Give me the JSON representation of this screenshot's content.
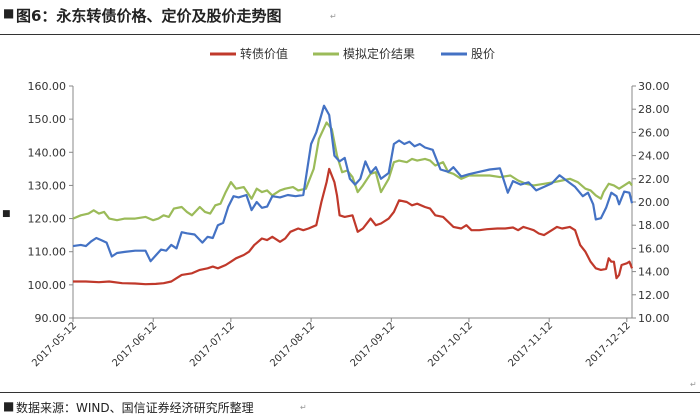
{
  "figure": {
    "title": "图6：永东转债价格、定价及股价走势图",
    "source": "数据来源：WIND、国信证券经济研究所整理"
  },
  "chart_data": {
    "type": "line",
    "legend": {
      "placement": "top-center",
      "entries": [
        "转债价值",
        "模拟定价结果",
        "股价"
      ]
    },
    "grid": false,
    "x_ticks": [
      "2017-05-12",
      "2017-06-12",
      "2017-07-12",
      "2017-08-12",
      "2017-09-12",
      "2017-10-12",
      "2017-11-12",
      "2017-12-12"
    ],
    "x_range": [
      "2017-05-12",
      "2017-12-14"
    ],
    "y_left": {
      "range": [
        90,
        160
      ],
      "ticks": [
        "90.00",
        "100.00",
        "110.00",
        "120.00",
        "130.00",
        "140.00",
        "150.00",
        "160.00"
      ]
    },
    "y_right": {
      "range": [
        10,
        30
      ],
      "ticks": [
        "10.00",
        "12.00",
        "14.00",
        "16.00",
        "18.00",
        "20.00",
        "22.00",
        "24.00",
        "26.00",
        "28.00",
        "30.00"
      ]
    },
    "series": [
      {
        "name": "转债价值",
        "axis": "left",
        "color": "#c0392b",
        "points": [
          [
            "2017-05-12",
            101
          ],
          [
            "2017-05-17",
            101
          ],
          [
            "2017-05-22",
            100.8
          ],
          [
            "2017-05-26",
            101
          ],
          [
            "2017-05-31",
            100.5
          ],
          [
            "2017-06-05",
            100.4
          ],
          [
            "2017-06-09",
            100.2
          ],
          [
            "2017-06-13",
            100.3
          ],
          [
            "2017-06-16",
            100.5
          ],
          [
            "2017-06-19",
            101
          ],
          [
            "2017-06-21",
            102
          ],
          [
            "2017-06-23",
            103
          ],
          [
            "2017-06-27",
            103.5
          ],
          [
            "2017-06-30",
            104.5
          ],
          [
            "2017-07-03",
            105
          ],
          [
            "2017-07-05",
            105.5
          ],
          [
            "2017-07-07",
            105
          ],
          [
            "2017-07-10",
            106
          ],
          [
            "2017-07-12",
            107
          ],
          [
            "2017-07-14",
            108
          ],
          [
            "2017-07-17",
            109
          ],
          [
            "2017-07-19",
            110
          ],
          [
            "2017-07-21",
            112
          ],
          [
            "2017-07-24",
            114
          ],
          [
            "2017-07-26",
            113.5
          ],
          [
            "2017-07-28",
            114.5
          ],
          [
            "2017-07-31",
            113
          ],
          [
            "2017-08-02",
            114
          ],
          [
            "2017-08-04",
            116
          ],
          [
            "2017-08-07",
            117
          ],
          [
            "2017-08-09",
            116.5
          ],
          [
            "2017-08-11",
            117
          ],
          [
            "2017-08-14",
            118
          ],
          [
            "2017-08-16",
            125
          ],
          [
            "2017-08-18",
            131
          ],
          [
            "2017-08-19",
            135
          ],
          [
            "2017-08-21",
            131
          ],
          [
            "2017-08-22",
            127
          ],
          [
            "2017-08-23",
            121
          ],
          [
            "2017-08-25",
            120.5
          ],
          [
            "2017-08-28",
            121
          ],
          [
            "2017-08-30",
            116
          ],
          [
            "2017-09-01",
            117
          ],
          [
            "2017-09-04",
            120
          ],
          [
            "2017-09-06",
            118
          ],
          [
            "2017-09-08",
            118.5
          ],
          [
            "2017-09-11",
            120
          ],
          [
            "2017-09-13",
            122
          ],
          [
            "2017-09-15",
            125.5
          ],
          [
            "2017-09-18",
            125
          ],
          [
            "2017-09-20",
            124
          ],
          [
            "2017-09-22",
            124.5
          ],
          [
            "2017-09-25",
            123.5
          ],
          [
            "2017-09-27",
            123
          ],
          [
            "2017-09-29",
            121
          ],
          [
            "2017-10-02",
            120.5
          ],
          [
            "2017-10-04",
            119
          ],
          [
            "2017-10-06",
            117.5
          ],
          [
            "2017-10-09",
            117
          ],
          [
            "2017-10-11",
            118
          ],
          [
            "2017-10-13",
            116.5
          ],
          [
            "2017-10-16",
            116.5
          ],
          [
            "2017-10-19",
            116.8
          ],
          [
            "2017-10-23",
            117
          ],
          [
            "2017-10-26",
            117
          ],
          [
            "2017-10-29",
            117.3
          ],
          [
            "2017-10-31",
            116.5
          ],
          [
            "2017-11-02",
            117.5
          ],
          [
            "2017-11-04",
            117
          ],
          [
            "2017-11-06",
            116.5
          ],
          [
            "2017-11-08",
            115.5
          ],
          [
            "2017-11-10",
            115
          ],
          [
            "2017-11-13",
            116.5
          ],
          [
            "2017-11-15",
            117.5
          ],
          [
            "2017-11-17",
            117
          ],
          [
            "2017-11-20",
            117.5
          ],
          [
            "2017-11-22",
            116.5
          ],
          [
            "2017-11-24",
            112
          ],
          [
            "2017-11-26",
            110
          ],
          [
            "2017-11-28",
            107
          ],
          [
            "2017-11-30",
            105
          ],
          [
            "2017-12-02",
            104.5
          ],
          [
            "2017-12-04",
            104.8
          ],
          [
            "2017-12-05",
            108
          ],
          [
            "2017-12-06",
            107
          ],
          [
            "2017-12-07",
            107
          ],
          [
            "2017-12-08",
            102
          ],
          [
            "2017-12-09",
            103
          ],
          [
            "2017-12-10",
            106
          ],
          [
            "2017-12-12",
            106.5
          ],
          [
            "2017-12-13",
            107
          ],
          [
            "2017-12-14",
            105
          ]
        ]
      },
      {
        "name": "模拟定价结果",
        "axis": "left",
        "color": "#9bbb59",
        "points": [
          [
            "2017-05-12",
            120
          ],
          [
            "2017-05-15",
            121
          ],
          [
            "2017-05-18",
            121.5
          ],
          [
            "2017-05-20",
            122.5
          ],
          [
            "2017-05-22",
            121.5
          ],
          [
            "2017-05-24",
            122
          ],
          [
            "2017-05-26",
            120
          ],
          [
            "2017-05-29",
            119.5
          ],
          [
            "2017-06-01",
            120
          ],
          [
            "2017-06-05",
            120
          ],
          [
            "2017-06-09",
            120.5
          ],
          [
            "2017-06-12",
            119.5
          ],
          [
            "2017-06-14",
            120
          ],
          [
            "2017-06-16",
            121
          ],
          [
            "2017-06-18",
            120.5
          ],
          [
            "2017-06-20",
            123
          ],
          [
            "2017-06-23",
            123.5
          ],
          [
            "2017-06-25",
            122
          ],
          [
            "2017-06-27",
            121
          ],
          [
            "2017-06-30",
            123.5
          ],
          [
            "2017-07-02",
            122
          ],
          [
            "2017-07-04",
            121.5
          ],
          [
            "2017-07-06",
            124
          ],
          [
            "2017-07-08",
            124.5
          ],
          [
            "2017-07-10",
            128
          ],
          [
            "2017-07-12",
            131
          ],
          [
            "2017-07-14",
            129
          ],
          [
            "2017-07-17",
            129.5
          ],
          [
            "2017-07-20",
            126
          ],
          [
            "2017-07-22",
            129
          ],
          [
            "2017-07-24",
            128
          ],
          [
            "2017-07-26",
            128.5
          ],
          [
            "2017-07-28",
            127
          ],
          [
            "2017-07-31",
            128.5
          ],
          [
            "2017-08-02",
            129
          ],
          [
            "2017-08-05",
            129.5
          ],
          [
            "2017-08-07",
            128.5
          ],
          [
            "2017-08-10",
            129
          ],
          [
            "2017-08-13",
            135
          ],
          [
            "2017-08-15",
            144
          ],
          [
            "2017-08-18",
            149
          ],
          [
            "2017-08-20",
            147
          ],
          [
            "2017-08-22",
            139
          ],
          [
            "2017-08-24",
            134
          ],
          [
            "2017-08-26",
            134.5
          ],
          [
            "2017-08-28",
            132.5
          ],
          [
            "2017-08-30",
            128
          ],
          [
            "2017-09-01",
            130
          ],
          [
            "2017-09-04",
            133.5
          ],
          [
            "2017-09-06",
            134
          ],
          [
            "2017-09-08",
            128
          ],
          [
            "2017-09-11",
            132
          ],
          [
            "2017-09-13",
            137
          ],
          [
            "2017-09-15",
            137.5
          ],
          [
            "2017-09-18",
            137
          ],
          [
            "2017-09-20",
            138
          ],
          [
            "2017-09-22",
            137.5
          ],
          [
            "2017-09-25",
            138
          ],
          [
            "2017-09-27",
            137.5
          ],
          [
            "2017-09-29",
            136
          ],
          [
            "2017-10-02",
            137
          ],
          [
            "2017-10-04",
            134
          ],
          [
            "2017-10-06",
            133.5
          ],
          [
            "2017-10-09",
            132
          ],
          [
            "2017-10-12",
            133
          ],
          [
            "2017-10-16",
            133
          ],
          [
            "2017-10-20",
            133
          ],
          [
            "2017-10-24",
            132.5
          ],
          [
            "2017-10-28",
            133
          ],
          [
            "2017-10-31",
            131.5
          ],
          [
            "2017-11-03",
            130.5
          ],
          [
            "2017-11-06",
            130
          ],
          [
            "2017-11-10",
            130.5
          ],
          [
            "2017-11-14",
            131
          ],
          [
            "2017-11-17",
            131.5
          ],
          [
            "2017-11-20",
            132
          ],
          [
            "2017-11-23",
            131
          ],
          [
            "2017-11-26",
            129
          ],
          [
            "2017-11-28",
            128.5
          ],
          [
            "2017-11-30",
            127
          ],
          [
            "2017-12-02",
            126
          ],
          [
            "2017-12-03",
            128
          ],
          [
            "2017-12-05",
            130.5
          ],
          [
            "2017-12-07",
            130
          ],
          [
            "2017-12-09",
            129
          ],
          [
            "2017-12-11",
            130
          ],
          [
            "2017-12-13",
            131
          ],
          [
            "2017-12-14",
            130
          ]
        ]
      },
      {
        "name": "股价",
        "axis": "right",
        "color": "#4472c4",
        "points": [
          [
            "2017-05-12",
            16.2
          ],
          [
            "2017-05-15",
            16.3
          ],
          [
            "2017-05-17",
            16.2
          ],
          [
            "2017-05-19",
            16.6
          ],
          [
            "2017-05-21",
            16.9
          ],
          [
            "2017-05-23",
            16.7
          ],
          [
            "2017-05-25",
            16.5
          ],
          [
            "2017-05-27",
            15.3
          ],
          [
            "2017-05-29",
            15.6
          ],
          [
            "2017-06-01",
            15.7
          ],
          [
            "2017-06-05",
            15.8
          ],
          [
            "2017-06-09",
            15.8
          ],
          [
            "2017-06-11",
            14.9
          ],
          [
            "2017-06-13",
            15.4
          ],
          [
            "2017-06-15",
            15.9
          ],
          [
            "2017-06-17",
            15.8
          ],
          [
            "2017-06-19",
            16.3
          ],
          [
            "2017-06-21",
            16
          ],
          [
            "2017-06-23",
            17.4
          ],
          [
            "2017-06-25",
            17.3
          ],
          [
            "2017-06-28",
            17.2
          ],
          [
            "2017-07-01",
            16.5
          ],
          [
            "2017-07-03",
            17
          ],
          [
            "2017-07-05",
            16.9
          ],
          [
            "2017-07-07",
            18
          ],
          [
            "2017-07-09",
            18.2
          ],
          [
            "2017-07-11",
            19.6
          ],
          [
            "2017-07-13",
            20.5
          ],
          [
            "2017-07-15",
            20.4
          ],
          [
            "2017-07-18",
            20.6
          ],
          [
            "2017-07-20",
            19.3
          ],
          [
            "2017-07-22",
            20
          ],
          [
            "2017-07-24",
            19.5
          ],
          [
            "2017-07-26",
            19.6
          ],
          [
            "2017-07-28",
            20.5
          ],
          [
            "2017-07-31",
            20.4
          ],
          [
            "2017-08-03",
            20.6
          ],
          [
            "2017-08-06",
            20.5
          ],
          [
            "2017-08-09",
            20.6
          ],
          [
            "2017-08-12",
            25
          ],
          [
            "2017-08-14",
            26
          ],
          [
            "2017-08-17",
            28.3
          ],
          [
            "2017-08-19",
            27.5
          ],
          [
            "2017-08-21",
            24
          ],
          [
            "2017-08-23",
            23.5
          ],
          [
            "2017-08-25",
            23.8
          ],
          [
            "2017-08-27",
            22
          ],
          [
            "2017-08-29",
            21.5
          ],
          [
            "2017-08-31",
            22
          ],
          [
            "2017-09-02",
            23.5
          ],
          [
            "2017-09-04",
            22.5
          ],
          [
            "2017-09-06",
            23
          ],
          [
            "2017-09-08",
            22
          ],
          [
            "2017-09-11",
            22.5
          ],
          [
            "2017-09-13",
            25
          ],
          [
            "2017-09-15",
            25.3
          ],
          [
            "2017-09-17",
            25
          ],
          [
            "2017-09-19",
            25.2
          ],
          [
            "2017-09-21",
            24.8
          ],
          [
            "2017-09-23",
            25
          ],
          [
            "2017-09-25",
            24.7
          ],
          [
            "2017-09-28",
            24.5
          ],
          [
            "2017-10-01",
            22.8
          ],
          [
            "2017-10-04",
            22.6
          ],
          [
            "2017-10-06",
            23
          ],
          [
            "2017-10-09",
            22.2
          ],
          [
            "2017-10-12",
            22.4
          ],
          [
            "2017-10-16",
            22.6
          ],
          [
            "2017-10-20",
            22.8
          ],
          [
            "2017-10-24",
            22.9
          ],
          [
            "2017-10-27",
            20.8
          ],
          [
            "2017-10-29",
            21.8
          ],
          [
            "2017-11-01",
            21.5
          ],
          [
            "2017-11-04",
            21.7
          ],
          [
            "2017-11-07",
            21
          ],
          [
            "2017-11-10",
            21.3
          ],
          [
            "2017-11-13",
            21.6
          ],
          [
            "2017-11-16",
            22.3
          ],
          [
            "2017-11-19",
            21.8
          ],
          [
            "2017-11-22",
            21.3
          ],
          [
            "2017-11-25",
            20.5
          ],
          [
            "2017-11-27",
            20.8
          ],
          [
            "2017-11-29",
            19.8
          ],
          [
            "2017-11-30",
            18.5
          ],
          [
            "2017-12-02",
            18.6
          ],
          [
            "2017-12-04",
            19.5
          ],
          [
            "2017-12-06",
            20.8
          ],
          [
            "2017-12-08",
            20.5
          ],
          [
            "2017-12-09",
            19.8
          ],
          [
            "2017-12-11",
            20.9
          ],
          [
            "2017-12-13",
            20.8
          ],
          [
            "2017-12-14",
            19.9
          ]
        ]
      }
    ]
  }
}
